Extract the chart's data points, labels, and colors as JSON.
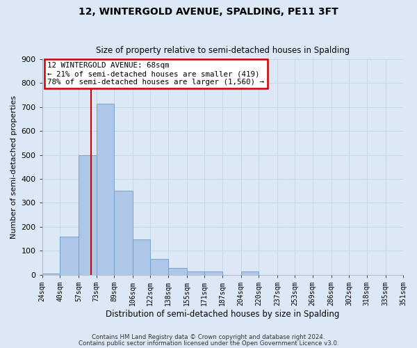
{
  "title": "12, WINTERGOLD AVENUE, SPALDING, PE11 3FT",
  "subtitle": "Size of property relative to semi-detached houses in Spalding",
  "xlabel": "Distribution of semi-detached houses by size in Spalding",
  "ylabel": "Number of semi-detached properties",
  "bin_edges": [
    24,
    40,
    57,
    73,
    89,
    106,
    122,
    138,
    155,
    171,
    187,
    204,
    220,
    237,
    253,
    269,
    286,
    302,
    318,
    335,
    351
  ],
  "bin_labels": [
    "24sqm",
    "40sqm",
    "57sqm",
    "73sqm",
    "89sqm",
    "106sqm",
    "122sqm",
    "138sqm",
    "155sqm",
    "171sqm",
    "187sqm",
    "204sqm",
    "220sqm",
    "237sqm",
    "253sqm",
    "269sqm",
    "286sqm",
    "302sqm",
    "318sqm",
    "335sqm",
    "351sqm"
  ],
  "counts": [
    5,
    160,
    500,
    715,
    350,
    148,
    65,
    28,
    15,
    14,
    0,
    13,
    0,
    0,
    0,
    0,
    0,
    0,
    0,
    0
  ],
  "ylim": [
    0,
    900
  ],
  "yticks": [
    0,
    100,
    200,
    300,
    400,
    500,
    600,
    700,
    800,
    900
  ],
  "bar_color": "#aec6e8",
  "bar_edge_color": "#6a9fc8",
  "vline_x": 68,
  "vline_color": "#cc0000",
  "annotation_line1": "12 WINTERGOLD AVENUE: 68sqm",
  "annotation_line2": "← 21% of semi-detached houses are smaller (419)",
  "annotation_line3": "78% of semi-detached houses are larger (1,560) →",
  "annotation_box_color": "#cc0000",
  "grid_color": "#c8d8ea",
  "bg_color": "#dce8f5",
  "footer1": "Contains HM Land Registry data © Crown copyright and database right 2024.",
  "footer2": "Contains public sector information licensed under the Open Government Licence v3.0."
}
